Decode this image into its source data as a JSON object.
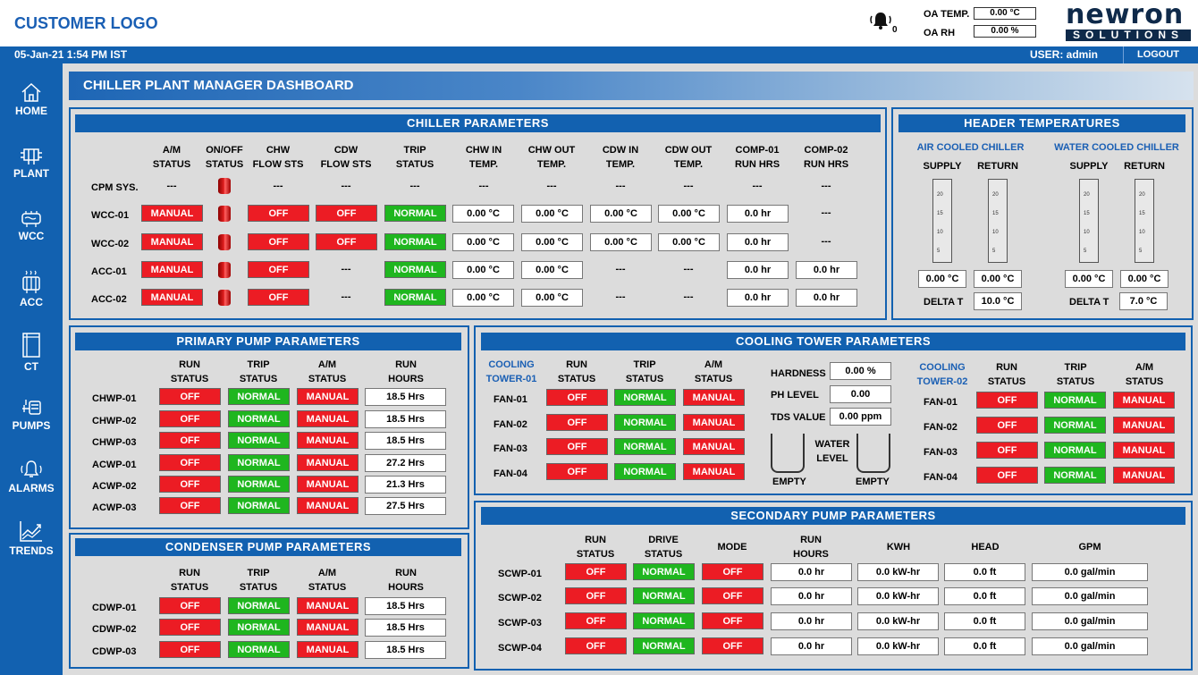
{
  "header": {
    "logo": "CUSTOMER LOGO",
    "alarm_count": "0",
    "oa_temp_label": "OA TEMP.",
    "oa_temp_value": "0.00 °C",
    "oa_rh_label": "OA RH",
    "oa_rh_value": "0.00 %",
    "brand_top": "newron",
    "brand_bottom": "SOLUTIONS",
    "datetime": "05-Jan-21 1:54 PM IST",
    "user": "USER: admin",
    "logout": "LOGOUT"
  },
  "sidebar": [
    {
      "label": "HOME",
      "icon": "home-icon"
    },
    {
      "label": "PLANT",
      "icon": "plant-icon"
    },
    {
      "label": "WCC",
      "icon": "wcc-icon"
    },
    {
      "label": "ACC",
      "icon": "acc-icon"
    },
    {
      "label": "CT",
      "icon": "ct-icon"
    },
    {
      "label": "PUMPS",
      "icon": "pumps-icon"
    },
    {
      "label": "ALARMS",
      "icon": "alarms-icon"
    },
    {
      "label": "TRENDS",
      "icon": "trends-icon"
    }
  ],
  "dashboard_title": "CHILLER PLANT MANAGER DASHBOARD",
  "chiller": {
    "title": "CHILLER PARAMETERS",
    "headers": [
      [
        "A/M",
        "STATUS"
      ],
      [
        "ON/OFF",
        "STATUS"
      ],
      [
        "CHW",
        "FLOW STS"
      ],
      [
        "CDW",
        "FLOW STS"
      ],
      [
        "TRIP",
        "STATUS"
      ],
      [
        "CHW IN",
        "TEMP."
      ],
      [
        "CHW OUT",
        "TEMP."
      ],
      [
        "CDW IN",
        "TEMP."
      ],
      [
        "CDW OUT",
        "TEMP."
      ],
      [
        "COMP-01",
        "RUN HRS"
      ],
      [
        "COMP-02",
        "RUN HRS"
      ]
    ],
    "cpm": {
      "label": "CPM SYS.",
      "dash": "---"
    },
    "rows": [
      {
        "label": "WCC-01",
        "am": "MANUAL",
        "chw": "OFF",
        "cdw": "OFF",
        "trip": "NORMAL",
        "chw_in": "0.00 °C",
        "chw_out": "0.00 °C",
        "cdw_in": "0.00 °C",
        "cdw_out": "0.00 °C",
        "comp1": "0.0 hr",
        "comp2": "---"
      },
      {
        "label": "WCC-02",
        "am": "MANUAL",
        "chw": "OFF",
        "cdw": "OFF",
        "trip": "NORMAL",
        "chw_in": "0.00 °C",
        "chw_out": "0.00 °C",
        "cdw_in": "0.00 °C",
        "cdw_out": "0.00 °C",
        "comp1": "0.0 hr",
        "comp2": "---"
      },
      {
        "label": "ACC-01",
        "am": "MANUAL",
        "chw": "OFF",
        "cdw": "---",
        "trip": "NORMAL",
        "chw_in": "0.00 °C",
        "chw_out": "0.00 °C",
        "cdw_in": "---",
        "cdw_out": "---",
        "comp1": "0.0 hr",
        "comp2": "0.0 hr"
      },
      {
        "label": "ACC-02",
        "am": "MANUAL",
        "chw": "OFF",
        "cdw": "---",
        "trip": "NORMAL",
        "chw_in": "0.00 °C",
        "chw_out": "0.00 °C",
        "cdw_in": "---",
        "cdw_out": "---",
        "comp1": "0.0 hr",
        "comp2": "0.0 hr"
      }
    ]
  },
  "header_temps": {
    "title": "HEADER TEMPERATURES",
    "air": "AIR COOLED CHILLER",
    "water": "WATER COOLED CHILLER",
    "supply": "SUPPLY",
    "return": "RETURN",
    "ticks": [
      "20",
      "15",
      "10",
      "5"
    ],
    "values": [
      "0.00 °C",
      "0.00 °C",
      "0.00 °C",
      "0.00 °C"
    ],
    "delta_label": "DELTA T",
    "delta_air": "10.0 °C",
    "delta_water": "7.0 °C"
  },
  "primary": {
    "title": "PRIMARY PUMP PARAMETERS",
    "headers": [
      [
        "RUN",
        "STATUS"
      ],
      [
        "TRIP",
        "STATUS"
      ],
      [
        "A/M",
        "STATUS"
      ],
      [
        "RUN",
        "HOURS"
      ]
    ],
    "rows": [
      {
        "label": "CHWP-01",
        "run": "OFF",
        "trip": "NORMAL",
        "am": "MANUAL",
        "hours": "18.5 Hrs"
      },
      {
        "label": "CHWP-02",
        "run": "OFF",
        "trip": "NORMAL",
        "am": "MANUAL",
        "hours": "18.5 Hrs"
      },
      {
        "label": "CHWP-03",
        "run": "OFF",
        "trip": "NORMAL",
        "am": "MANUAL",
        "hours": "18.5 Hrs"
      },
      {
        "label": "ACWP-01",
        "run": "OFF",
        "trip": "NORMAL",
        "am": "MANUAL",
        "hours": "27.2 Hrs"
      },
      {
        "label": "ACWP-02",
        "run": "OFF",
        "trip": "NORMAL",
        "am": "MANUAL",
        "hours": "21.3 Hrs"
      },
      {
        "label": "ACWP-03",
        "run": "OFF",
        "trip": "NORMAL",
        "am": "MANUAL",
        "hours": "27.5 Hrs"
      }
    ]
  },
  "condenser": {
    "title": "CONDENSER PUMP PARAMETERS",
    "headers": [
      [
        "RUN",
        "STATUS"
      ],
      [
        "TRIP",
        "STATUS"
      ],
      [
        "A/M",
        "STATUS"
      ],
      [
        "RUN",
        "HOURS"
      ]
    ],
    "rows": [
      {
        "label": "CDWP-01",
        "run": "OFF",
        "trip": "NORMAL",
        "am": "MANUAL",
        "hours": "18.5 Hrs"
      },
      {
        "label": "CDWP-02",
        "run": "OFF",
        "trip": "NORMAL",
        "am": "MANUAL",
        "hours": "18.5 Hrs"
      },
      {
        "label": "CDWP-03",
        "run": "OFF",
        "trip": "NORMAL",
        "am": "MANUAL",
        "hours": "18.5 Hrs"
      }
    ]
  },
  "cooling_tower": {
    "title": "COOLING TOWER PARAMETERS",
    "tower1": [
      "COOLING",
      "TOWER-01"
    ],
    "tower2": [
      "COOLING",
      "TOWER-02"
    ],
    "headers": [
      [
        "RUN",
        "STATUS"
      ],
      [
        "TRIP",
        "STATUS"
      ],
      [
        "A/M",
        "STATUS"
      ]
    ],
    "fans": [
      {
        "label": "FAN-01",
        "run": "OFF",
        "trip": "NORMAL",
        "am": "MANUAL"
      },
      {
        "label": "FAN-02",
        "run": "OFF",
        "trip": "NORMAL",
        "am": "MANUAL"
      },
      {
        "label": "FAN-03",
        "run": "OFF",
        "trip": "NORMAL",
        "am": "MANUAL"
      },
      {
        "label": "FAN-04",
        "run": "OFF",
        "trip": "NORMAL",
        "am": "MANUAL"
      }
    ],
    "hardness_label": "HARDNESS",
    "hardness": "0.00 %",
    "ph_label": "PH LEVEL",
    "ph": "0.00",
    "tds_label": "TDS VALUE",
    "tds": "0.00 ppm",
    "water_level": [
      "WATER",
      "LEVEL"
    ],
    "empty": "EMPTY"
  },
  "secondary": {
    "title": "SECONDARY PUMP PARAMETERS",
    "headers": [
      [
        "RUN",
        "STATUS"
      ],
      [
        "DRIVE",
        "STATUS"
      ],
      [
        "MODE",
        ""
      ],
      [
        "RUN",
        "HOURS"
      ],
      [
        "KWH",
        ""
      ],
      [
        "HEAD",
        ""
      ],
      [
        "GPM",
        ""
      ]
    ],
    "rows": [
      {
        "label": "SCWP-01",
        "run": "OFF",
        "drive": "NORMAL",
        "mode": "OFF",
        "hours": "0.0 hr",
        "kwh": "0.0 kW-hr",
        "head": "0.0 ft",
        "gpm": "0.0 gal/min"
      },
      {
        "label": "SCWP-02",
        "run": "OFF",
        "drive": "NORMAL",
        "mode": "OFF",
        "hours": "0.0 hr",
        "kwh": "0.0 kW-hr",
        "head": "0.0 ft",
        "gpm": "0.0 gal/min"
      },
      {
        "label": "SCWP-03",
        "run": "OFF",
        "drive": "NORMAL",
        "mode": "OFF",
        "hours": "0.0 hr",
        "kwh": "0.0 kW-hr",
        "head": "0.0 ft",
        "gpm": "0.0 gal/min"
      },
      {
        "label": "SCWP-04",
        "run": "OFF",
        "drive": "NORMAL",
        "mode": "OFF",
        "hours": "0.0 hr",
        "kwh": "0.0 kW-hr",
        "head": "0.0 ft",
        "gpm": "0.0 gal/min"
      }
    ]
  }
}
